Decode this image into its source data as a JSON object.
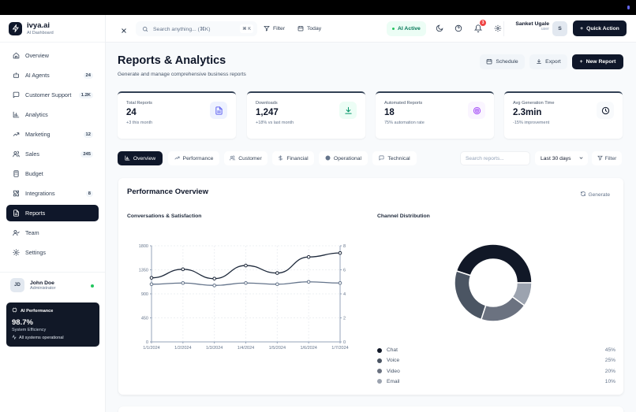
{
  "brand": {
    "name": "ivya.ai",
    "subtitle": "AI Dashboard"
  },
  "sidebar": {
    "items": [
      {
        "label": "Overview",
        "icon": "home-icon",
        "badge": null
      },
      {
        "label": "AI Agents",
        "icon": "bot-icon",
        "badge": "24"
      },
      {
        "label": "Customer Support",
        "icon": "message-square-icon",
        "badge": "1.2K"
      },
      {
        "label": "Analytics",
        "icon": "bar-chart-icon",
        "badge": null
      },
      {
        "label": "Marketing",
        "icon": "trending-up-icon",
        "badge": "12"
      },
      {
        "label": "Sales",
        "icon": "users-icon",
        "badge": "245"
      },
      {
        "label": "Budget",
        "icon": "calculator-icon",
        "badge": null
      },
      {
        "label": "Integrations",
        "icon": "puzzle-icon",
        "badge": "8"
      },
      {
        "label": "Reports",
        "icon": "file-text-icon",
        "badge": null,
        "active": true
      },
      {
        "label": "Team",
        "icon": "user-check-icon",
        "badge": null
      },
      {
        "label": "Settings",
        "icon": "gear-icon",
        "badge": null
      }
    ],
    "user": {
      "initials": "JD",
      "name": "John Doe",
      "role": "Administrator"
    },
    "performance": {
      "title": "AI Performance",
      "value": "98.7%",
      "label": "System Efficiency",
      "status": "All systems operational"
    }
  },
  "header": {
    "search_placeholder": "Search anything... (⌘K)",
    "shortcut": "⌘ K",
    "filter_label": "Filter",
    "today_label": "Today",
    "ai_status": "AI Active",
    "notification_count": "3",
    "user": {
      "name": "Sanket Ugale",
      "role": "user",
      "initial": "S"
    },
    "quick_action_label": "Quick Action"
  },
  "page": {
    "title": "Reports & Analytics",
    "subtitle": "Generate and manage comprehensive business reports",
    "actions": {
      "schedule": "Schedule",
      "export": "Export",
      "new_report": "New Report"
    }
  },
  "stats": [
    {
      "label": "Total Reports",
      "value": "24",
      "change": "+3 this month",
      "icon": "file-text-icon",
      "icon_bg": "#eef2ff",
      "icon_color": "#6366f1"
    },
    {
      "label": "Downloads",
      "value": "1,247",
      "change": "+18% vs last month",
      "icon": "download-icon",
      "icon_bg": "#ecfdf5",
      "icon_color": "#059669"
    },
    {
      "label": "Automated Reports",
      "value": "18",
      "change": "75% automation rate",
      "icon": "target-icon",
      "icon_bg": "#faf5ff",
      "icon_color": "#a855f7"
    },
    {
      "label": "Avg Generation Time",
      "value": "2.3min",
      "change": "-15% improvement",
      "icon": "clock-icon",
      "icon_bg": "#f8fafc",
      "icon_color": "#0f172a"
    }
  ],
  "tabs": [
    {
      "label": "Overview",
      "icon": "bar-chart-icon",
      "active": true
    },
    {
      "label": "Performance",
      "icon": "trending-up-icon"
    },
    {
      "label": "Customer",
      "icon": "users-icon"
    },
    {
      "label": "Financial",
      "icon": "dollar-icon"
    },
    {
      "label": "Operational",
      "icon": "circle-icon"
    },
    {
      "label": "Technical",
      "icon": "message-square-icon"
    }
  ],
  "filters": {
    "search_placeholder": "Search reports...",
    "range": "Last 30 days",
    "filter_label": "Filter"
  },
  "panel": {
    "title": "Performance Overview",
    "generate_label": "Generate"
  },
  "chart_data": [
    {
      "type": "line",
      "title": "Conversations & Satisfaction",
      "x": [
        "1/1/2024",
        "1/2/2024",
        "1/3/2024",
        "1/4/2024",
        "1/5/2024",
        "1/6/2024",
        "1/7/2024"
      ],
      "series": [
        {
          "name": "Conversations",
          "axis": "left",
          "color": "#1e293b",
          "values": [
            1200,
            1360,
            1185,
            1430,
            1290,
            1590,
            1665
          ]
        },
        {
          "name": "Satisfaction",
          "axis": "right",
          "color": "#64748b",
          "values": [
            4.8,
            4.9,
            4.7,
            4.9,
            4.8,
            5.0,
            4.9
          ]
        }
      ],
      "y_left": {
        "ticks": [
          "0",
          "450",
          "900",
          "1350",
          "1800"
        ],
        "range": [
          0,
          1800
        ]
      },
      "y_right": {
        "ticks": [
          "0",
          "2",
          "4",
          "6",
          "8"
        ],
        "range": [
          0,
          8
        ]
      },
      "grid": true
    },
    {
      "type": "pie",
      "title": "Channel Distribution",
      "donut": true,
      "categories": [
        "Chat",
        "Voice",
        "Video",
        "Email"
      ],
      "values": [
        45,
        25,
        20,
        10
      ],
      "labels": [
        "45%",
        "25%",
        "20%",
        "10%"
      ],
      "colors": [
        "#111827",
        "#4b5563",
        "#6b7280",
        "#9ca3af"
      ]
    }
  ]
}
